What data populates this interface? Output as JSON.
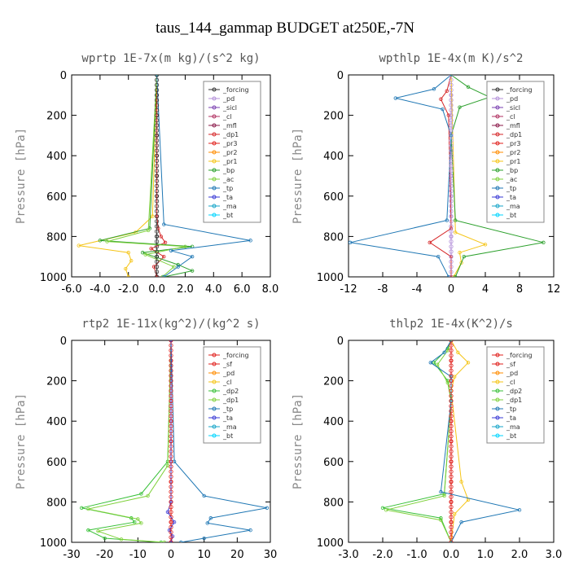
{
  "title": "taus_144_gammap  BUDGET at250E,-7N",
  "chart_data": [
    {
      "type": "line",
      "title": "wprtp  1E-7x(m kg)/(s^2 kg)",
      "ylabel": "Pressure [hPa]",
      "xlim": [
        -6,
        8
      ],
      "ylim": [
        1000,
        0
      ],
      "xticks": [
        "-6.0",
        "-4.0",
        "-2.0",
        "0.0",
        "2.0",
        "4.0",
        "6.0",
        "8.0"
      ],
      "yticks": [
        "0",
        "200",
        "400",
        "600",
        "800",
        "1000"
      ],
      "legend": [
        "_forcing",
        "_pd",
        "_sicl",
        "_cl",
        "_mfl",
        "_dp1",
        "_pr3",
        "_pr2",
        "_pr1",
        "_bp",
        "_ac",
        "_tp",
        "_ta",
        "_ma",
        "_bt"
      ],
      "series": [
        {
          "name": "_forcing",
          "color": "#333333",
          "x": [
            0,
            0,
            0,
            0,
            0,
            0,
            0,
            0,
            0,
            0,
            0
          ],
          "y": [
            0,
            100,
            200,
            300,
            400,
            500,
            600,
            700,
            800,
            900,
            1000
          ]
        },
        {
          "name": "_dp1",
          "color": "#d62728",
          "x": [
            0,
            0,
            0.1,
            0.3,
            0.6,
            -0.4,
            0.5,
            -0.2,
            0
          ],
          "y": [
            0,
            700,
            760,
            800,
            830,
            860,
            900,
            950,
            1000
          ]
        },
        {
          "name": "_pr1",
          "color": "#f5c518",
          "x": [
            0,
            -0.3,
            -1.5,
            -5.5,
            -2.0,
            -1.8,
            -2.2,
            -2.0
          ],
          "y": [
            0,
            700,
            780,
            845,
            880,
            920,
            960,
            1000
          ]
        },
        {
          "name": "_bp",
          "color": "#2ca02c",
          "x": [
            0,
            -0.5,
            -4.0,
            2.5,
            -1.0,
            1.5,
            2.5,
            0.5
          ],
          "y": [
            0,
            760,
            820,
            850,
            880,
            940,
            970,
            1000
          ]
        },
        {
          "name": "_ac",
          "color": "#7fd13b",
          "x": [
            0,
            -0.6,
            -3.5,
            2.0,
            -0.8,
            1.2,
            0.4
          ],
          "y": [
            0,
            770,
            825,
            850,
            890,
            950,
            1000
          ]
        },
        {
          "name": "_tp",
          "color": "#1f77b4",
          "x": [
            0,
            0.5,
            6.6,
            1.0,
            2.5,
            1.5,
            0.5
          ],
          "y": [
            0,
            740,
            820,
            870,
            900,
            950,
            1000
          ]
        }
      ]
    },
    {
      "type": "line",
      "title": "wpthlp  1E-4x(m K)/s^2",
      "ylabel": "Pressure [hPa]",
      "xlim": [
        -12,
        12
      ],
      "ylim": [
        1000,
        0
      ],
      "xticks": [
        "-12",
        "-8",
        "-4",
        "0",
        "4",
        "8",
        "12"
      ],
      "yticks": [
        "0",
        "200",
        "400",
        "600",
        "800",
        "1000"
      ],
      "legend": [
        "_forcing",
        "_pd",
        "_sicl",
        "_cl",
        "_mfl",
        "_dp1",
        "_pr3",
        "_pr2",
        "_pr1",
        "_bp",
        "_ac",
        "_tp",
        "_ta",
        "_ma",
        "_bt"
      ],
      "series": [
        {
          "name": "_pd",
          "color": "#b38fd9",
          "x": [
            0,
            0,
            0,
            0,
            0,
            0,
            0,
            0,
            0,
            0,
            0
          ],
          "y": [
            0,
            100,
            200,
            300,
            400,
            500,
            600,
            700,
            800,
            900,
            1000
          ]
        },
        {
          "name": "_dp1",
          "color": "#d62728",
          "x": [
            0,
            -0.5,
            -1.2,
            -0.3,
            0,
            -2.5,
            0,
            0
          ],
          "y": [
            0,
            80,
            120,
            200,
            760,
            830,
            900,
            1000
          ]
        },
        {
          "name": "_pr1",
          "color": "#f5c518",
          "x": [
            0,
            0.5,
            4.0,
            1.0,
            1.2,
            0.3
          ],
          "y": [
            0,
            780,
            840,
            880,
            930,
            1000
          ]
        },
        {
          "name": "_bp",
          "color": "#2ca02c",
          "x": [
            0,
            2.0,
            4.5,
            1.0,
            0,
            0.5,
            10.8,
            1.5,
            0.5
          ],
          "y": [
            0,
            60,
            110,
            160,
            300,
            720,
            830,
            900,
            1000
          ]
        },
        {
          "name": "_tp",
          "color": "#1f77b4",
          "x": [
            0,
            -2.0,
            -6.5,
            -1.0,
            0,
            -0.5,
            -11.8,
            -1.5,
            -0.3
          ],
          "y": [
            0,
            70,
            115,
            170,
            300,
            720,
            830,
            900,
            1000
          ]
        }
      ]
    },
    {
      "type": "line",
      "title": "rtp2  1E-11x(kg^2)/(kg^2 s)",
      "ylabel": "Pressure [hPa]",
      "xlim": [
        -30,
        30
      ],
      "ylim": [
        1000,
        0
      ],
      "xticks": [
        "-30",
        "-20",
        "-10",
        "0",
        "10",
        "20",
        "30"
      ],
      "yticks": [
        "0",
        "200",
        "400",
        "600",
        "800",
        "1000"
      ],
      "legend": [
        "_forcing",
        "_sf",
        "_pd",
        "_cl",
        "_dp2",
        "_dp1",
        "_tp",
        "_ta",
        "_ma",
        "_bt"
      ],
      "series": [
        {
          "name": "_forcing",
          "color": "#e0201c",
          "x": [
            0,
            0,
            0,
            0,
            0,
            0,
            0,
            0,
            0,
            0,
            0
          ],
          "y": [
            0,
            100,
            200,
            300,
            400,
            500,
            600,
            700,
            800,
            900,
            1000
          ]
        },
        {
          "name": "_dp2",
          "color": "#38c038",
          "x": [
            0,
            -1,
            -9,
            -27,
            -12,
            -11,
            -25,
            -20,
            -3
          ],
          "y": [
            0,
            600,
            760,
            830,
            880,
            900,
            940,
            980,
            1000
          ]
        },
        {
          "name": "_dp1",
          "color": "#7fd13b",
          "x": [
            0,
            -1,
            -7,
            -25,
            -10,
            -9,
            -22,
            -15,
            -2
          ],
          "y": [
            0,
            620,
            770,
            835,
            885,
            905,
            945,
            985,
            1000
          ]
        },
        {
          "name": "_tp",
          "color": "#1f77b4",
          "x": [
            0,
            1,
            10,
            29,
            12,
            11,
            24,
            10,
            3
          ],
          "y": [
            0,
            600,
            770,
            830,
            880,
            905,
            940,
            980,
            1000
          ]
        },
        {
          "name": "_ta",
          "color": "#3a3ad6",
          "x": [
            0,
            0,
            -1,
            1,
            -0.5,
            0.5,
            0
          ],
          "y": [
            0,
            800,
            850,
            900,
            940,
            970,
            1000
          ]
        }
      ]
    },
    {
      "type": "line",
      "title": "thlp2  1E-4x(K^2)/s",
      "ylabel": "Pressure [hPa]",
      "xlim": [
        -3,
        3
      ],
      "ylim": [
        1000,
        0
      ],
      "xticks": [
        "-3.0",
        "-2.0",
        "-1.0",
        "0.0",
        "1.0",
        "2.0",
        "3.0"
      ],
      "yticks": [
        "0",
        "200",
        "400",
        "600",
        "800",
        "1000"
      ],
      "legend": [
        "_forcing",
        "_sf",
        "_pd",
        "_cl",
        "_dp2",
        "_dp1",
        "_tp",
        "_ta",
        "_ma",
        "_bt"
      ],
      "series": [
        {
          "name": "_forcing",
          "color": "#e0201c",
          "x": [
            0,
            0,
            0,
            0,
            0,
            0,
            0,
            0,
            0,
            0,
            0
          ],
          "y": [
            0,
            100,
            200,
            300,
            400,
            500,
            600,
            700,
            800,
            900,
            1000
          ]
        },
        {
          "name": "_cl",
          "color": "#f5c518",
          "x": [
            0,
            0.2,
            0.5,
            0.1,
            0,
            0.3,
            0.5,
            0.1,
            0
          ],
          "y": [
            0,
            60,
            110,
            180,
            250,
            700,
            790,
            860,
            1000
          ]
        },
        {
          "name": "_dp2",
          "color": "#38c038",
          "x": [
            0,
            -0.1,
            -0.5,
            -0.1,
            0,
            -0.2,
            -2.0,
            -0.3,
            0
          ],
          "y": [
            0,
            40,
            110,
            200,
            300,
            760,
            830,
            880,
            1000
          ]
        },
        {
          "name": "_dp1",
          "color": "#7fd13b",
          "x": [
            0,
            -0.1,
            -0.4,
            -0.1,
            0,
            -0.2,
            -1.9,
            -0.3,
            0
          ],
          "y": [
            0,
            50,
            120,
            210,
            300,
            770,
            840,
            890,
            1000
          ]
        },
        {
          "name": "_tp",
          "color": "#1f77b4",
          "x": [
            0,
            -0.2,
            -0.6,
            0,
            0,
            -0.3,
            2.0,
            0.3,
            0
          ],
          "y": [
            0,
            60,
            110,
            180,
            300,
            750,
            840,
            900,
            1000
          ]
        }
      ]
    }
  ]
}
